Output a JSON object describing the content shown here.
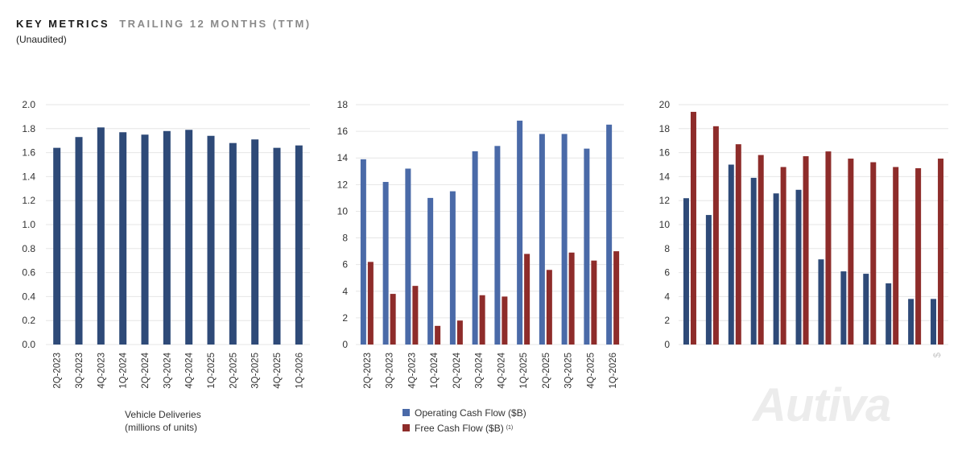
{
  "header": {
    "title_main": "KEY METRICS",
    "title_sub": "TRAILING 12 MONTHS (TTM)",
    "subtitle": "(Unaudited)"
  },
  "colors": {
    "blue": "#2e4a78",
    "blue_light": "#4a6aa8",
    "red": "#8e2c2a",
    "grid": "#e6e6e6"
  },
  "chart_data": [
    {
      "type": "bar",
      "categories": [
        "2Q-2023",
        "3Q-2023",
        "4Q-2023",
        "1Q-2024",
        "2Q-2024",
        "3Q-2024",
        "4Q-2024",
        "1Q-2025",
        "2Q-2025",
        "3Q-2025",
        "4Q-2025",
        "1Q-2026"
      ],
      "series": [
        {
          "values": [
            1.64,
            1.73,
            1.81,
            1.77,
            1.75,
            1.78,
            1.79,
            1.74,
            1.68,
            1.71,
            1.64,
            1.66
          ]
        }
      ],
      "yticks": [
        "0.0",
        "0.2",
        "0.4",
        "0.6",
        "0.8",
        "1.0",
        "1.2",
        "1.4",
        "1.6",
        "1.8",
        "2.0"
      ],
      "ylim": [
        0,
        2.0
      ],
      "caption_line1": "Vehicle Deliveries",
      "caption_line2": "(millions of units)"
    },
    {
      "type": "bar",
      "categories": [
        "2Q-2023",
        "3Q-2023",
        "4Q-2023",
        "1Q-2024",
        "2Q-2024",
        "3Q-2024",
        "4Q-2024",
        "1Q-2025",
        "2Q-2025",
        "3Q-2025",
        "4Q-2025",
        "1Q-2026"
      ],
      "series": [
        {
          "name": "Operating Cash Flow ($B)",
          "values": [
            13.9,
            12.2,
            13.2,
            11.0,
            11.5,
            14.5,
            14.9,
            16.8,
            15.8,
            15.8,
            14.7,
            16.5
          ]
        },
        {
          "name": "Free Cash Flow ($B)",
          "note": "(1)",
          "values": [
            6.2,
            3.8,
            4.4,
            1.4,
            1.8,
            3.7,
            3.6,
            6.8,
            5.6,
            6.9,
            6.3,
            7.0
          ]
        }
      ],
      "yticks": [
        "0",
        "2",
        "4",
        "6",
        "8",
        "10",
        "12",
        "14",
        "16",
        "18"
      ],
      "ylim": [
        0,
        18
      ]
    },
    {
      "type": "bar",
      "categories": [
        "",
        "",
        "",
        "",
        "",
        "",
        "",
        "",
        "",
        "",
        "",
        ""
      ],
      "series": [
        {
          "values": [
            12.2,
            10.8,
            15.0,
            13.9,
            12.6,
            12.9,
            7.1,
            6.1,
            5.9,
            5.1,
            3.8,
            3.8
          ]
        },
        {
          "values": [
            19.4,
            18.2,
            16.7,
            15.8,
            14.8,
            15.7,
            16.1,
            15.5,
            15.2,
            14.8,
            14.7,
            15.5
          ]
        }
      ],
      "yticks": [
        "0",
        "2",
        "4",
        "6",
        "8",
        "10",
        "12",
        "14",
        "16",
        "18",
        "20"
      ],
      "ylim": [
        0,
        20
      ],
      "faded_tick_label": "$"
    }
  ],
  "watermark": "Autiva"
}
